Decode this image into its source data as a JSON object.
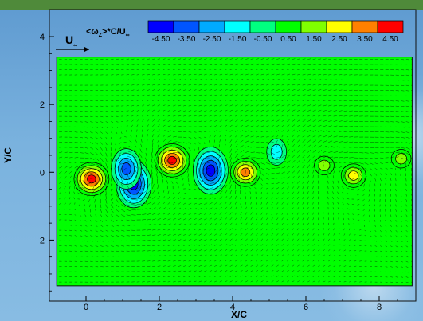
{
  "chart_data": {
    "type": "heatmap",
    "title": "",
    "xlabel": "X/C",
    "ylabel": "Y/C",
    "xlim": [
      -1,
      9
    ],
    "ylim": [
      -3.8,
      4.8
    ],
    "x_ticks": [
      "0",
      "2",
      "4",
      "6",
      "8"
    ],
    "x_tick_values": [
      0,
      2,
      4,
      6,
      8
    ],
    "y_ticks": [
      "4",
      "2",
      "0",
      "-2"
    ],
    "y_tick_values": [
      4,
      2,
      0,
      -2
    ],
    "domain": {
      "x": [
        -0.8,
        8.9
      ],
      "y": [
        -3.35,
        3.4
      ]
    },
    "freestream_label": "U",
    "freestream_subscript": "∞",
    "legend": {
      "title_prefix": "<ω",
      "title_sub1": "Z",
      "title_mid": ">*C/U",
      "title_sub2": "∞",
      "placement": "top",
      "levels": [
        "-4.50",
        "-3.50",
        "-2.50",
        "-1.50",
        "-0.50",
        "0.50",
        "1.50",
        "2.50",
        "3.50",
        "4.50"
      ],
      "level_values": [
        -4.5,
        -3.5,
        -2.5,
        -1.5,
        -0.5,
        0.5,
        1.5,
        2.5,
        3.5,
        4.5
      ],
      "colors": [
        "#0000ff",
        "#0055ff",
        "#00aaff",
        "#00ffff",
        "#00ff80",
        "#00ff00",
        "#80ff00",
        "#ffff00",
        "#ff8000",
        "#ff0000"
      ]
    },
    "background_level_color": "#00ff00",
    "vortices": [
      {
        "x": 0.15,
        "y": -0.2,
        "value": 4.5,
        "sign": "positive"
      },
      {
        "x": 1.3,
        "y": -0.35,
        "value": -4.5,
        "sign": "negative"
      },
      {
        "x": 1.1,
        "y": 0.1,
        "value": -3.5,
        "sign": "negative"
      },
      {
        "x": 2.35,
        "y": 0.35,
        "value": 4.5,
        "sign": "positive"
      },
      {
        "x": 3.4,
        "y": 0.05,
        "value": -4.5,
        "sign": "negative"
      },
      {
        "x": 4.35,
        "y": 0.0,
        "value": 3.5,
        "sign": "positive"
      },
      {
        "x": 5.2,
        "y": 0.6,
        "value": -1.5,
        "sign": "negative"
      },
      {
        "x": 6.5,
        "y": 0.2,
        "value": 1.5,
        "sign": "positive"
      },
      {
        "x": 7.3,
        "y": -0.1,
        "value": 2.5,
        "sign": "positive"
      },
      {
        "x": 8.6,
        "y": 0.4,
        "value": 1.5,
        "sign": "positive"
      }
    ]
  }
}
